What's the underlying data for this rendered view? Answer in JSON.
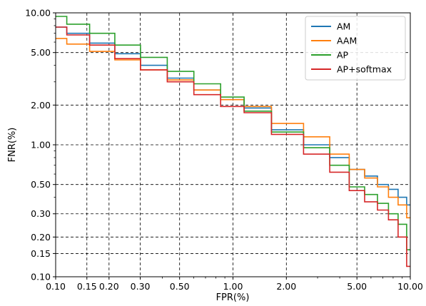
{
  "chart_data": {
    "type": "line",
    "xlabel": "FPR(%)",
    "ylabel": "FNR(%)",
    "xscale": "log",
    "yscale": "log",
    "xlim": [
      0.1,
      10.0
    ],
    "ylim": [
      0.1,
      10.0
    ],
    "grid": true,
    "legend_position": "top-right",
    "xticks": [
      0.1,
      0.15,
      0.2,
      0.3,
      0.5,
      1.0,
      2.0,
      5.0,
      10.0
    ],
    "xtick_labels": [
      "0.10",
      "0.15",
      "0.20",
      "0.30",
      "0.50",
      "1.00",
      "2.00",
      "5.00",
      "10.00"
    ],
    "yticks": [
      0.1,
      0.15,
      0.2,
      0.3,
      0.5,
      1.0,
      2.0,
      5.0,
      10.0
    ],
    "ytick_labels": [
      "0.10",
      "0.15",
      "0.20",
      "0.30",
      "0.50",
      "1.00",
      "2.00",
      "5.00",
      "10.00"
    ],
    "series": [
      {
        "name": "AM",
        "color": "#1f77b4",
        "x": [
          0.1,
          0.13,
          0.18,
          0.25,
          0.35,
          0.5,
          0.7,
          1.0,
          1.3,
          2.0,
          3.0,
          4.0,
          5.0,
          6.0,
          7.0,
          8.0,
          9.0,
          10.0
        ],
        "y": [
          7.8,
          7.0,
          5.9,
          4.9,
          4.0,
          3.2,
          2.6,
          2.2,
          1.9,
          1.3,
          1.0,
          0.8,
          0.65,
          0.58,
          0.5,
          0.46,
          0.4,
          0.35
        ]
      },
      {
        "name": "AAM",
        "color": "#ff7f0e",
        "x": [
          0.1,
          0.13,
          0.18,
          0.25,
          0.35,
          0.5,
          0.7,
          1.0,
          1.3,
          2.0,
          3.0,
          4.0,
          5.0,
          6.0,
          7.0,
          8.0,
          9.0,
          10.0
        ],
        "y": [
          6.4,
          5.8,
          5.1,
          4.4,
          3.7,
          3.1,
          2.6,
          2.2,
          1.95,
          1.45,
          1.15,
          0.85,
          0.65,
          0.56,
          0.48,
          0.4,
          0.35,
          0.28
        ]
      },
      {
        "name": "AP",
        "color": "#2ca02c",
        "x": [
          0.1,
          0.13,
          0.18,
          0.25,
          0.35,
          0.5,
          0.7,
          1.0,
          1.3,
          2.0,
          3.0,
          4.0,
          5.0,
          6.0,
          7.0,
          8.0,
          9.0,
          10.0
        ],
        "y": [
          9.4,
          8.2,
          7.0,
          5.7,
          4.6,
          3.6,
          2.9,
          2.3,
          1.8,
          1.25,
          0.95,
          0.7,
          0.48,
          0.42,
          0.36,
          0.3,
          0.25,
          0.16
        ]
      },
      {
        "name": "AP+softmax",
        "color": "#d62728",
        "x": [
          0.1,
          0.13,
          0.18,
          0.25,
          0.35,
          0.5,
          0.7,
          1.0,
          1.3,
          2.0,
          3.0,
          4.0,
          5.0,
          6.0,
          7.0,
          8.0,
          9.0,
          10.0
        ],
        "y": [
          7.8,
          6.8,
          5.7,
          4.5,
          3.7,
          3.0,
          2.4,
          1.95,
          1.75,
          1.2,
          0.85,
          0.62,
          0.45,
          0.37,
          0.32,
          0.27,
          0.2,
          0.12
        ]
      }
    ]
  }
}
